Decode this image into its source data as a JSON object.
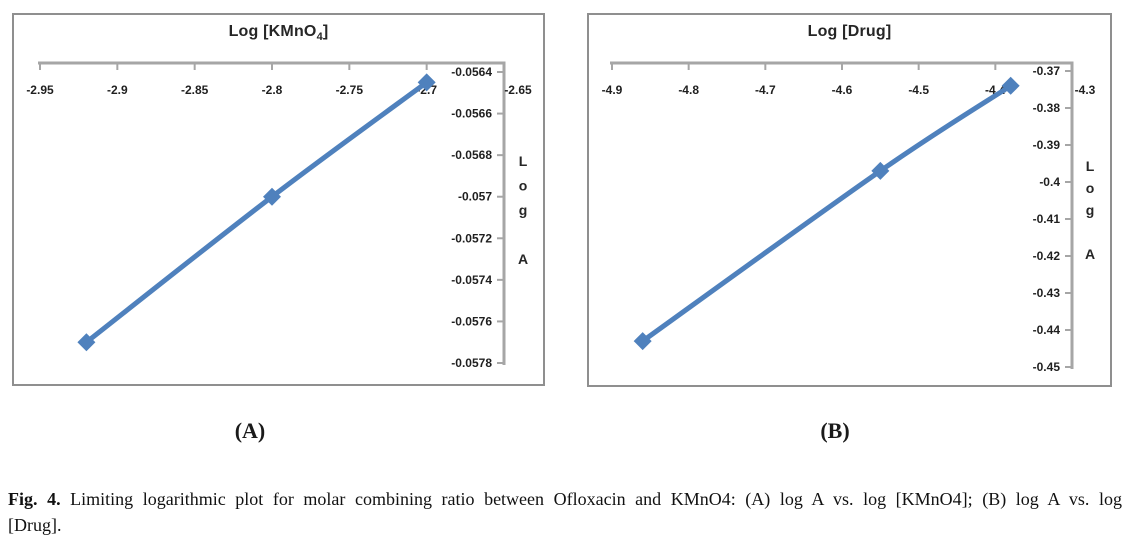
{
  "figure": {
    "panel_labels": {
      "a": "(A)",
      "b": "(B)"
    },
    "caption": {
      "prefix": "Fig. 4.",
      "line1": " Limiting logarithmic plot for molar combining ratio between Ofloxacin and KMnO4: (A) log A vs. log [KMnO4]; (B) log A vs. log",
      "line2": "[Drug]."
    }
  },
  "colors": {
    "line": "#4F81BD",
    "axis": "#A6A6A6",
    "tick_text": "#1f1f1f",
    "panel_border": "#8f8f8f"
  },
  "chart_data": [
    {
      "id": "A",
      "type": "line",
      "title": "Log [KMnO4]",
      "title_parts": {
        "main": "Log [KMnO",
        "sub": "4",
        "end": "]"
      },
      "ylabel": "Log A",
      "marker": "diamond",
      "grid": false,
      "axes_layout": {
        "x_axis": "top",
        "y_axis": "right"
      },
      "xlim": [
        -2.95,
        -2.65
      ],
      "ylim": [
        -0.0578,
        -0.0564
      ],
      "x_ticks": [
        -2.95,
        -2.9,
        -2.85,
        -2.8,
        -2.75,
        -2.7,
        -2.65
      ],
      "x_tick_labels": [
        "-2.95",
        "-2.9",
        "-2.85",
        "-2.8",
        "-2.75",
        "-2.7",
        "-2.65"
      ],
      "y_ticks": [
        -0.0564,
        -0.0566,
        -0.0568,
        -0.057,
        -0.0572,
        -0.0574,
        -0.0576,
        -0.0578
      ],
      "y_tick_labels": [
        "-0.0564",
        "-0.0566",
        "-0.0568",
        "-0.057",
        "-0.0572",
        "-0.0574",
        "-0.0576",
        "-0.0578"
      ],
      "points": [
        {
          "x": -2.92,
          "y": -0.0577
        },
        {
          "x": -2.8,
          "y": -0.057
        },
        {
          "x": -2.7,
          "y": -0.05645
        }
      ]
    },
    {
      "id": "B",
      "type": "line",
      "title": "Log [Drug]",
      "title_parts": {
        "main": "Log [Drug",
        "sub": "",
        "end": "]"
      },
      "ylabel": "Log A",
      "marker": "diamond",
      "grid": false,
      "axes_layout": {
        "x_axis": "top",
        "y_axis": "right"
      },
      "xlim": [
        -4.9,
        -4.3
      ],
      "ylim": [
        -0.45,
        -0.37
      ],
      "x_ticks": [
        -4.9,
        -4.8,
        -4.7,
        -4.6,
        -4.5,
        -4.4,
        -4.3
      ],
      "x_tick_labels": [
        "-4.9",
        "-4.8",
        "-4.7",
        "-4.6",
        "-4.5",
        "-4.4",
        "-4.3"
      ],
      "y_ticks": [
        -0.37,
        -0.38,
        -0.39,
        -0.4,
        -0.41,
        -0.42,
        -0.43,
        -0.44,
        -0.45
      ],
      "y_tick_labels": [
        "-0.37",
        "-0.38",
        "-0.39",
        "-0.4",
        "-0.41",
        "-0.42",
        "-0.43",
        "-0.44",
        "-0.45"
      ],
      "points": [
        {
          "x": -4.86,
          "y": -0.443
        },
        {
          "x": -4.55,
          "y": -0.397
        },
        {
          "x": -4.38,
          "y": -0.374
        }
      ]
    }
  ]
}
